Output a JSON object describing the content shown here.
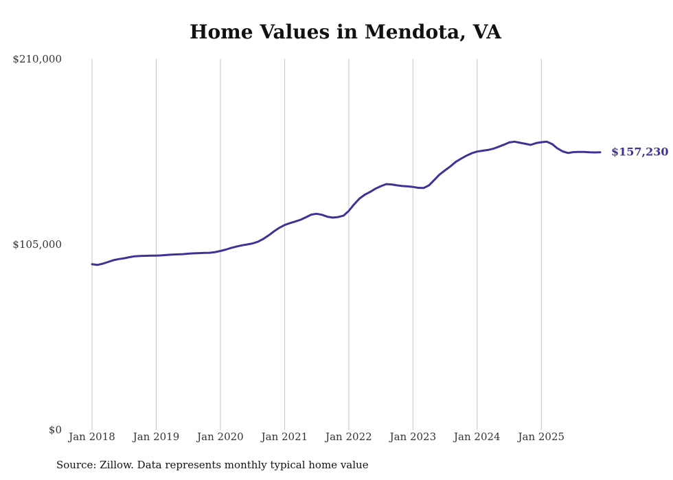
{
  "chart_data": {
    "type": "line",
    "title": "Home Values in Mendota, VA",
    "xlabel": "",
    "ylabel": "",
    "ylim": [
      0,
      210000
    ],
    "y_ticks": [
      {
        "value": 0,
        "label": "$0"
      },
      {
        "value": 105000,
        "label": "$105,000"
      },
      {
        "value": 210000,
        "label": "$210,000"
      }
    ],
    "x_ticks": [
      {
        "value": 2018.0,
        "label": "Jan 2018"
      },
      {
        "value": 2019.0,
        "label": "Jan 2019"
      },
      {
        "value": 2020.0,
        "label": "Jan 2020"
      },
      {
        "value": 2021.0,
        "label": "Jan 2021"
      },
      {
        "value": 2022.0,
        "label": "Jan 2022"
      },
      {
        "value": 2023.0,
        "label": "Jan 2023"
      },
      {
        "value": 2024.0,
        "label": "Jan 2024"
      },
      {
        "value": 2025.0,
        "label": "Jan 2025"
      }
    ],
    "xlim": [
      2018.0,
      2025.917
    ],
    "grid": "vertical",
    "color": "#3d3394",
    "end_label": "$157,230",
    "series": [
      {
        "name": "Typical home value",
        "x": [
          2018.0,
          2018.083,
          2018.167,
          2018.25,
          2018.333,
          2018.417,
          2018.5,
          2018.583,
          2018.667,
          2018.75,
          2018.833,
          2018.917,
          2019.0,
          2019.083,
          2019.167,
          2019.25,
          2019.333,
          2019.417,
          2019.5,
          2019.583,
          2019.667,
          2019.75,
          2019.833,
          2019.917,
          2020.0,
          2020.083,
          2020.167,
          2020.25,
          2020.333,
          2020.417,
          2020.5,
          2020.583,
          2020.667,
          2020.75,
          2020.833,
          2020.917,
          2021.0,
          2021.083,
          2021.167,
          2021.25,
          2021.333,
          2021.417,
          2021.5,
          2021.583,
          2021.667,
          2021.75,
          2021.833,
          2021.917,
          2022.0,
          2022.083,
          2022.167,
          2022.25,
          2022.333,
          2022.417,
          2022.5,
          2022.583,
          2022.667,
          2022.75,
          2022.833,
          2022.917,
          2023.0,
          2023.083,
          2023.167,
          2023.25,
          2023.333,
          2023.417,
          2023.5,
          2023.583,
          2023.667,
          2023.75,
          2023.833,
          2023.917,
          2024.0,
          2024.083,
          2024.167,
          2024.25,
          2024.333,
          2024.417,
          2024.5,
          2024.583,
          2024.667,
          2024.75,
          2024.833,
          2024.917,
          2025.0,
          2025.083,
          2025.167,
          2025.25,
          2025.333,
          2025.417,
          2025.5,
          2025.583,
          2025.667,
          2025.75,
          2025.833,
          2025.917
        ],
        "values": [
          93800,
          93400,
          94100,
          95100,
          96100,
          96700,
          97200,
          97800,
          98300,
          98500,
          98600,
          98700,
          98700,
          98800,
          99100,
          99300,
          99400,
          99500,
          99800,
          100000,
          100100,
          100200,
          100300,
          100700,
          101300,
          102100,
          103000,
          103800,
          104500,
          105000,
          105600,
          106500,
          108100,
          110100,
          112400,
          114400,
          116000,
          117100,
          118000,
          119000,
          120400,
          121900,
          122400,
          121800,
          120700,
          120200,
          120500,
          121300,
          124000,
          127700,
          131000,
          133200,
          134800,
          136600,
          138000,
          139200,
          139000,
          138500,
          138100,
          137900,
          137600,
          137100,
          137000,
          138500,
          141600,
          144700,
          147000,
          149200,
          151800,
          153600,
          155300,
          156700,
          157600,
          158100,
          158500,
          159200,
          160300,
          161500,
          162800,
          163200,
          162600,
          162000,
          161400,
          162400,
          162900,
          163200,
          161900,
          159400,
          157700,
          156800,
          157300,
          157400,
          157400,
          157200,
          157100,
          157230
        ]
      }
    ]
  },
  "source_note": "Source: Zillow. Data represents monthly typical home value"
}
